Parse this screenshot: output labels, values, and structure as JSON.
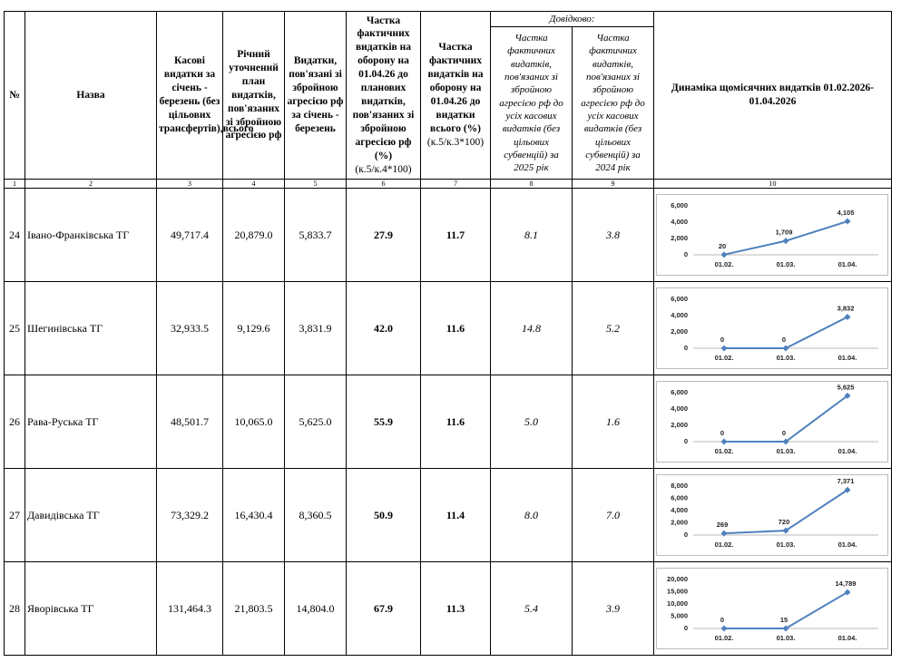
{
  "table": {
    "headers": [
      "№",
      "Назва",
      "Касові видатки за січень - березень (без цільових трансфертів),всього",
      "Річний уточнений план видатків, пов'язаних зі збройною агресією рф",
      "Видатки, пов'язані зі збройною агресією рф за січень - березень",
      "Частка фактичних видатків на оборону на 01.04.26 до планових видатків, пов'язаних зі збройною агресією рф (%)",
      "Частка фактичних видатків на оборону на 01.04.26 до видатки всього (%)",
      "Частка фактичних видатків, пов'язаних зі збройною агресією рф до усіх касових видатків (без цільових субвенцій) за 2025 рік",
      "Частка фактичних видатків, пов'язаних зі збройною агресією рф до усіх касових видатків (без цільових субвенцій) за 2024 рік",
      "Динаміка щомісячних видатків 01.02.2026-01.04.2026"
    ],
    "formula_notes": [
      "(к.5/к.4*100)",
      "(к.5/к.3*100)"
    ],
    "reference_header": "Довідково:",
    "column_numbers": [
      "1",
      "2",
      "3",
      "4",
      "5",
      "6",
      "7",
      "8",
      "9",
      "10"
    ],
    "rows": [
      {
        "cells": [
          "24",
          "Івано-Франківська ТГ",
          "49,717.4",
          "20,879.0",
          "5,833.7",
          "27.9",
          "11.7",
          "8.1",
          "3.8"
        ],
        "chart": {
          "type": "line",
          "categories": [
            "01.02.",
            "01.03.",
            "01.04."
          ],
          "values": [
            20,
            1709,
            4105
          ],
          "value_labels": [
            "20",
            "1,709",
            "4,105"
          ],
          "ylim": [
            0,
            6000
          ],
          "yticks": [
            0,
            {
              "value": 2000,
              "label": "2,000"
            },
            {
              "value": 4000,
              "label": "4,000"
            },
            {
              "value": 6000,
              "label": "6,000"
            }
          ],
          "color": "#4f81bd"
        }
      },
      {
        "cells": [
          "25",
          "Шегинівська ТГ",
          "32,933.5",
          "9,129.6",
          "3,831.9",
          "42.0",
          "11.6",
          "14.8",
          "5.2"
        ],
        "chart": {
          "type": "line",
          "categories": [
            "01.02.",
            "01.03.",
            "01.04."
          ],
          "values": [
            0,
            0,
            3832
          ],
          "value_labels": [
            "0",
            "0",
            "3,832"
          ],
          "ylim": [
            0,
            6000
          ],
          "yticks": [
            0,
            {
              "value": 2000,
              "label": "2,000"
            },
            {
              "value": 4000,
              "label": "4,000"
            },
            {
              "value": 6000,
              "label": "6,000"
            }
          ],
          "color": "#4f81bd"
        }
      },
      {
        "cells": [
          "26",
          "Рава-Руська ТГ",
          "48,501.7",
          "10,065.0",
          "5,625.0",
          "55.9",
          "11.6",
          "5.0",
          "1.6"
        ],
        "chart": {
          "type": "line",
          "categories": [
            "01.02.",
            "01.03.",
            "01.04."
          ],
          "values": [
            0,
            0,
            5625
          ],
          "value_labels": [
            "0",
            "0",
            "5,625"
          ],
          "ylim": [
            0,
            6000
          ],
          "yticks": [
            0,
            {
              "value": 2000,
              "label": "2,000"
            },
            {
              "value": 4000,
              "label": "4,000"
            },
            {
              "value": 6000,
              "label": "6,000"
            }
          ],
          "color": "#4f81bd"
        }
      },
      {
        "cells": [
          "27",
          "Давидівська ТГ",
          "73,329.2",
          "16,430.4",
          "8,360.5",
          "50.9",
          "11.4",
          "8.0",
          "7.0"
        ],
        "chart": {
          "type": "line",
          "categories": [
            "01.02.",
            "01.03.",
            "01.04."
          ],
          "values": [
            269,
            720,
            7371
          ],
          "value_labels": [
            "269",
            "720",
            "7,371"
          ],
          "ylim": [
            0,
            8000
          ],
          "yticks": [
            0,
            {
              "value": 2000,
              "label": "2,000"
            },
            {
              "value": 4000,
              "label": "4,000"
            },
            {
              "value": 6000,
              "label": "6,000"
            },
            {
              "value": 8000,
              "label": "8,000"
            }
          ],
          "color": "#4f81bd"
        }
      },
      {
        "cells": [
          "28",
          "Яворівська ТГ",
          "131,464.3",
          "21,803.5",
          "14,804.0",
          "67.9",
          "11.3",
          "5.4",
          "3.9"
        ],
        "chart": {
          "type": "line",
          "categories": [
            "01.02.",
            "01.03.",
            "01.04."
          ],
          "values": [
            0,
            15,
            14789
          ],
          "value_labels": [
            "0",
            "15",
            "14,789"
          ],
          "ylim": [
            0,
            20000
          ],
          "yticks": [
            0,
            {
              "value": 5000,
              "label": "5,000"
            },
            {
              "value": 10000,
              "label": "10,000"
            },
            {
              "value": 15000,
              "label": "15,000"
            },
            {
              "value": 20000,
              "label": "20,000"
            }
          ],
          "color": "#4f81bd"
        }
      }
    ]
  }
}
